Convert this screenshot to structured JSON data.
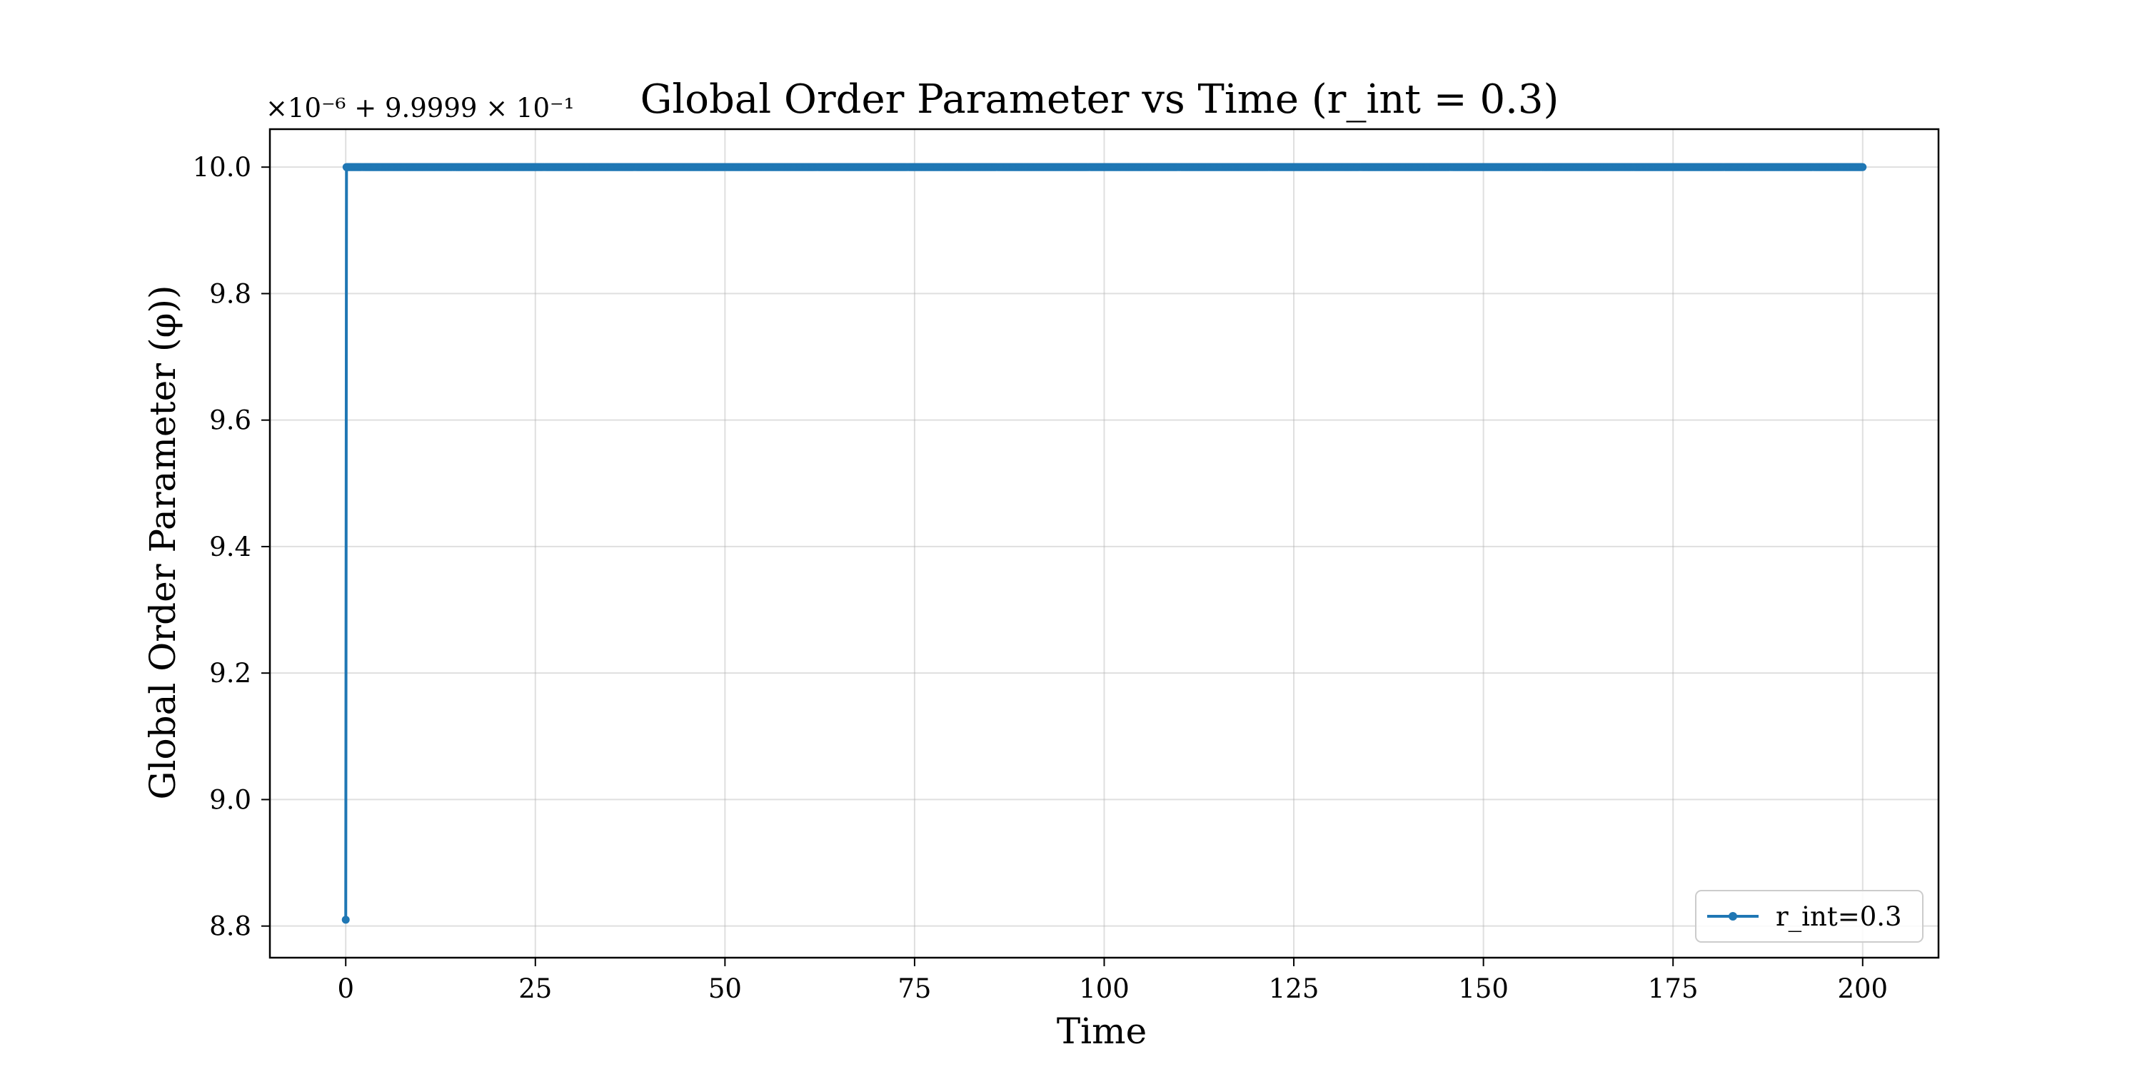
{
  "chart_data": {
    "type": "line",
    "title": "Global Order Parameter vs Time (r_int = 0.3)",
    "xlabel": "Time",
    "ylabel": "Global Order Parameter (φ))",
    "y_offset_label": "×10⁻⁶ + 9.9999 × 10⁻¹",
    "xlim": [
      -10,
      210
    ],
    "ylim": [
      8.75,
      10.06
    ],
    "x_ticks": [
      0,
      25,
      50,
      75,
      100,
      125,
      150,
      175,
      200
    ],
    "y_ticks": [
      8.8,
      9.0,
      9.2,
      9.4,
      9.6,
      9.8,
      10.0
    ],
    "x_tick_labels": [
      "0",
      "25",
      "50",
      "75",
      "100",
      "125",
      "150",
      "175",
      "200"
    ],
    "y_tick_labels": [
      "8.8",
      "9.0",
      "9.2",
      "9.4",
      "9.6",
      "9.8",
      "10.0"
    ],
    "grid": true,
    "legend_position": "lower-right",
    "series": [
      {
        "name": "r_int=0.3",
        "color": "#1f77b4",
        "marker": "dot",
        "x_start": 0,
        "x_end": 200,
        "x_step": 0.1,
        "initial_value": 8.81,
        "steady_value": 10.0
      }
    ]
  }
}
